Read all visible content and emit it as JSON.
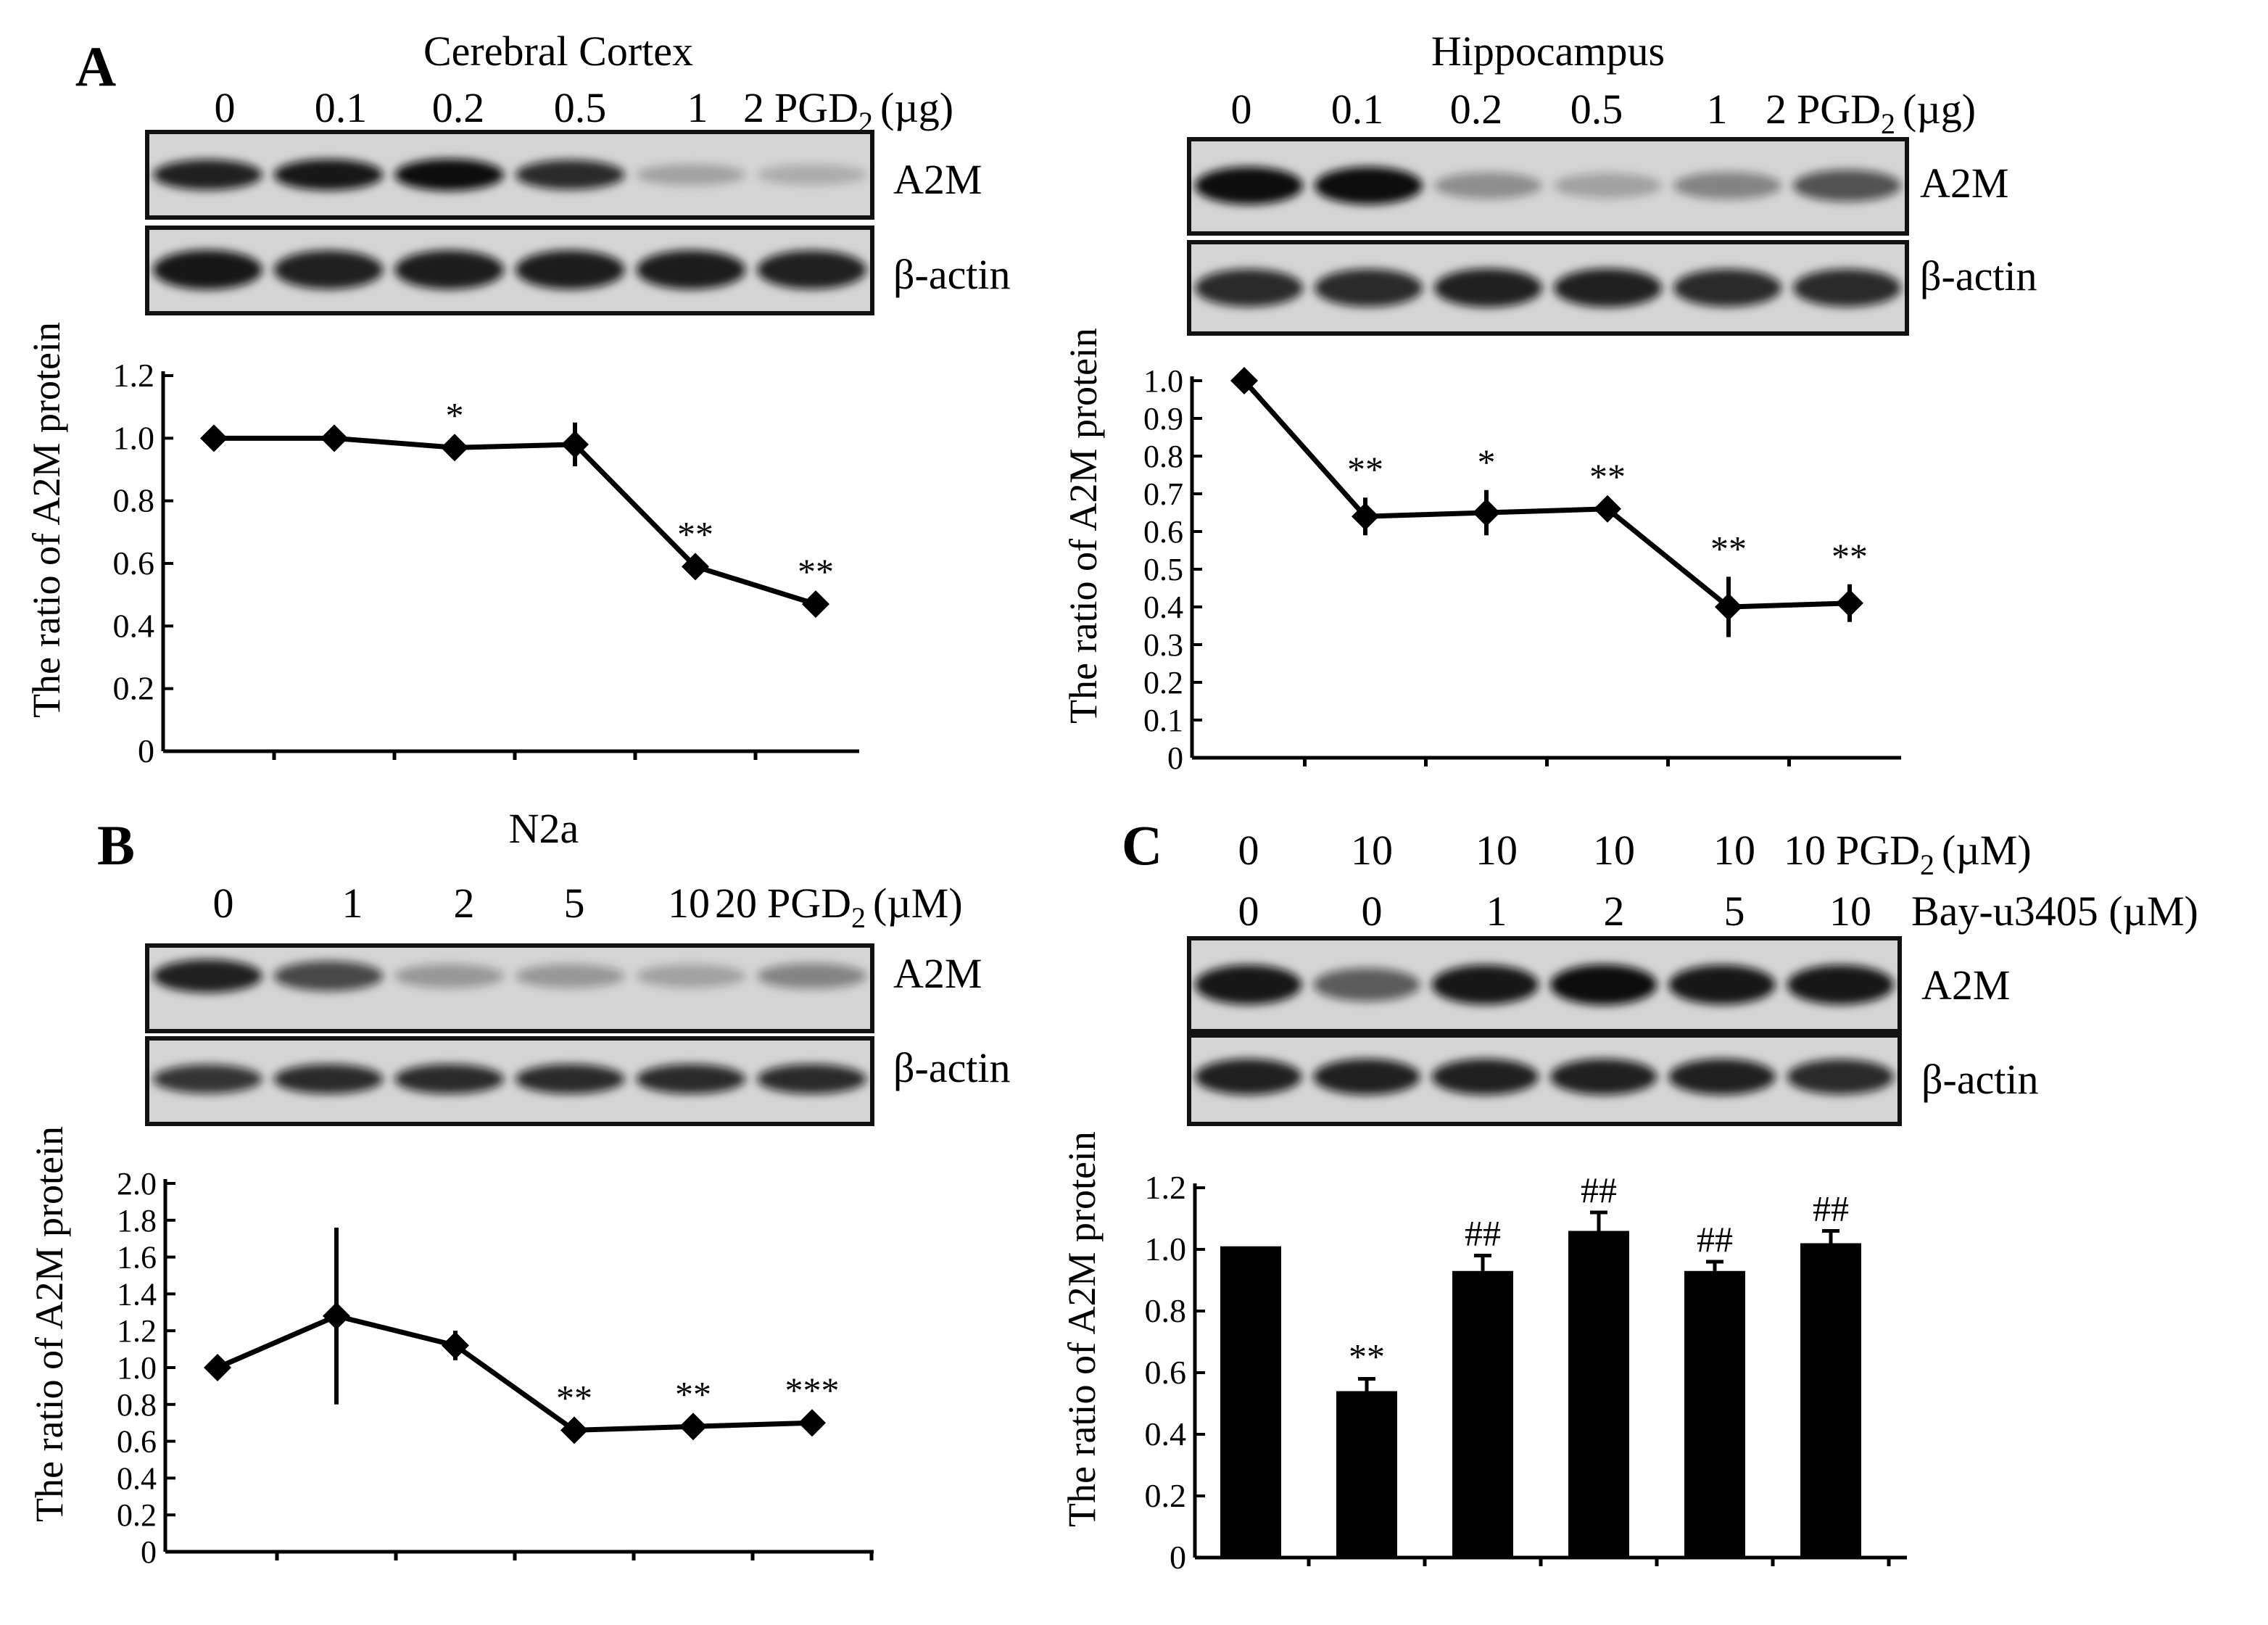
{
  "chart_data": [
    {
      "panel": "A",
      "title": "Cerebral Cortex",
      "type": "line",
      "lanes": [
        "0",
        "0.1",
        "0.2",
        "0.5",
        "1",
        "2"
      ],
      "lanes_unit": "PGD",
      "lanes_sub": "2",
      "lanes_unit_tail": "(µg)",
      "blots": [
        "A2M",
        "β-actin"
      ],
      "band_intensity": {
        "A2M": [
          0.9,
          0.95,
          1.0,
          0.85,
          0.25,
          0.2
        ],
        "β-actin": [
          0.95,
          0.9,
          0.92,
          0.92,
          0.92,
          0.9
        ]
      },
      "values": [
        1.0,
        1.0,
        0.97,
        0.98,
        0.59,
        0.47
      ],
      "errors": [
        0,
        0,
        0,
        0.07,
        0,
        0
      ],
      "significance": [
        "",
        "",
        "*",
        "",
        "**",
        "**"
      ],
      "ylim": [
        0,
        1.2
      ],
      "yticks": [
        "0",
        "0.2",
        "0.4",
        "0.6",
        "0.8",
        "1.0",
        "1.2"
      ],
      "ylabel": "The ratio of A2M protein"
    },
    {
      "panel": "",
      "title": "Hippocampus",
      "type": "line",
      "lanes": [
        "0",
        "0.1",
        "0.2",
        "0.5",
        "1",
        "2"
      ],
      "lanes_unit": "PGD",
      "lanes_sub": "2",
      "lanes_unit_tail": "(µg)",
      "blots": [
        "A2M",
        "β-actin"
      ],
      "band_intensity": {
        "A2M": [
          1.0,
          1.0,
          0.35,
          0.25,
          0.4,
          0.65
        ],
        "β-actin": [
          0.85,
          0.85,
          0.9,
          0.9,
          0.85,
          0.85
        ]
      },
      "values": [
        1.0,
        0.64,
        0.65,
        0.66,
        0.4,
        0.41
      ],
      "errors": [
        0,
        0.05,
        0.06,
        0,
        0.08,
        0.05
      ],
      "significance": [
        "",
        "**",
        "*",
        "**",
        "**",
        "**"
      ],
      "ylim": [
        0,
        1.0
      ],
      "yticks": [
        "0",
        "0.1",
        "0.2",
        "0.3",
        "0.4",
        "0.5",
        "0.6",
        "0.7",
        "0.8",
        "0.9",
        "1.0"
      ],
      "ylabel": "The ratio of A2M protein"
    },
    {
      "panel": "B",
      "title": "N2a",
      "type": "line",
      "lanes": [
        "0",
        "1",
        "2",
        "5",
        "10",
        "20"
      ],
      "lanes_unit": "PGD",
      "lanes_sub": "2",
      "lanes_unit_tail": "(µM)",
      "blots": [
        "A2M",
        "β-actin"
      ],
      "band_intensity": {
        "A2M": [
          0.9,
          0.7,
          0.3,
          0.3,
          0.25,
          0.4
        ],
        "β-actin": [
          0.8,
          0.85,
          0.85,
          0.85,
          0.85,
          0.85
        ]
      },
      "values": [
        1.0,
        1.28,
        1.12,
        0.66,
        0.68,
        0.7
      ],
      "errors": [
        0,
        0.48,
        0.08,
        0,
        0,
        0
      ],
      "significance": [
        "",
        "",
        "",
        "**",
        "**",
        "***"
      ],
      "ylim": [
        0,
        2.0
      ],
      "yticks": [
        "0",
        "0.2",
        "0.4",
        "0.6",
        "0.8",
        "1.0",
        "1.2",
        "1.4",
        "1.6",
        "1.8",
        "2.0"
      ],
      "ylabel": "The ratio of A2M protein"
    },
    {
      "panel": "C",
      "title": "",
      "type": "bar",
      "lanes": [
        "0",
        "10",
        "10",
        "10",
        "10",
        "10"
      ],
      "lanes_unit": "PGD",
      "lanes_sub": "2",
      "lanes_unit_tail": "(µM)",
      "lanes2": [
        "0",
        "0",
        "1",
        "2",
        "5",
        "10"
      ],
      "lanes2_label": "Bay-u3405 (µM)",
      "blots": [
        "A2M",
        "β-actin"
      ],
      "band_intensity": {
        "A2M": [
          0.95,
          0.6,
          0.95,
          1.0,
          0.95,
          0.95
        ],
        "β-actin": [
          0.9,
          0.9,
          0.9,
          0.9,
          0.9,
          0.85
        ]
      },
      "values": [
        1.01,
        0.54,
        0.93,
        1.06,
        0.93,
        1.02
      ],
      "errors": [
        0,
        0.04,
        0.05,
        0.06,
        0.03,
        0.04
      ],
      "significance": [
        "",
        "**",
        "##",
        "##",
        "##",
        "##"
      ],
      "ylim": [
        0,
        1.2
      ],
      "yticks": [
        "0",
        "0.2",
        "0.4",
        "0.6",
        "0.8",
        "1.0",
        "1.2"
      ],
      "ylabel": "The ratio of A2M protein"
    }
  ]
}
